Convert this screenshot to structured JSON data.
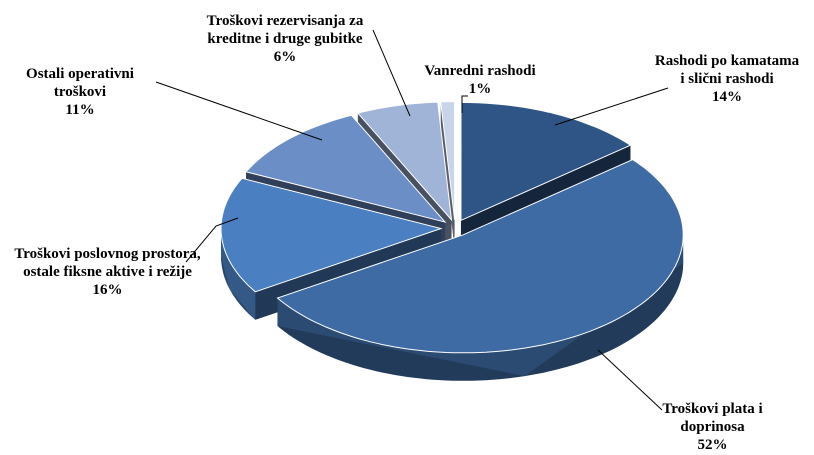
{
  "chart_data": {
    "type": "pie3d",
    "categories": [
      "Rashodi po kamatama i slični rashodi",
      "Troškovi plata i doprinosa",
      "Troškovi poslovnog prostora, ostale fiksne aktive i režije",
      "Ostali operativni troškovi",
      "Troškovi rezervisanja za kreditne i druge gubitke",
      "Vanredni rashodi"
    ],
    "values": [
      14,
      52,
      16,
      11,
      6,
      1
    ],
    "value_labels": [
      "14%",
      "52%",
      "16%",
      "11%",
      "6%",
      "1%"
    ],
    "colors": [
      "#2f5586",
      "#3e6ba3",
      "#4a7fc1",
      "#6b8ec7",
      "#a0b4d8",
      "#c8d4ea"
    ]
  }
}
